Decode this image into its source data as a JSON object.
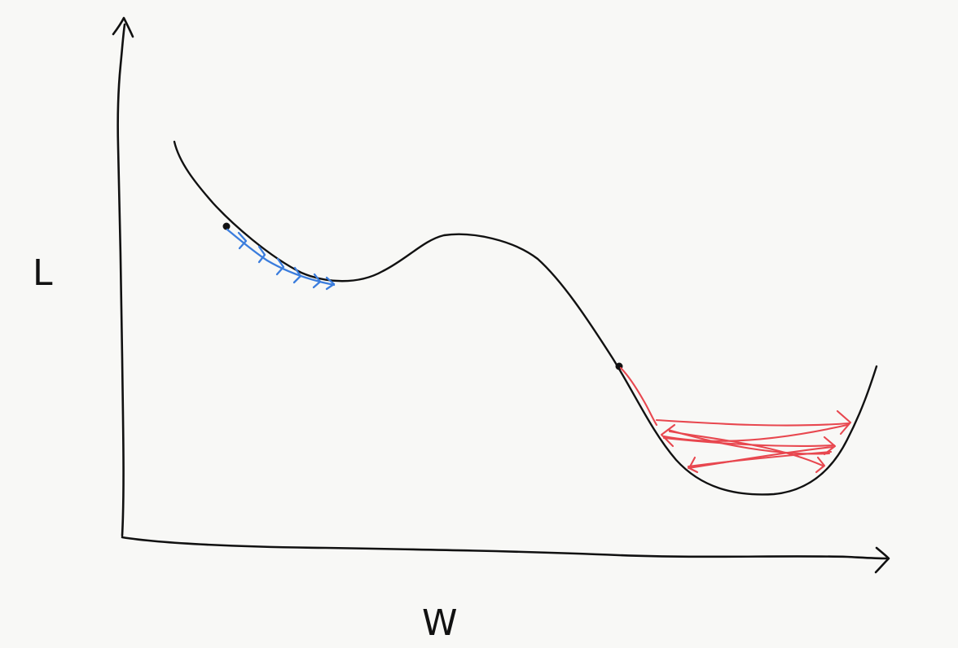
{
  "axes": {
    "y_label": "L",
    "x_label": "W"
  },
  "colors": {
    "background": "#f8f8f6",
    "ink": "#111111",
    "small_step_path": "#3b7ddd",
    "large_step_path": "#e8474f"
  },
  "curve": {
    "description_free": true,
    "start_points": 2
  }
}
